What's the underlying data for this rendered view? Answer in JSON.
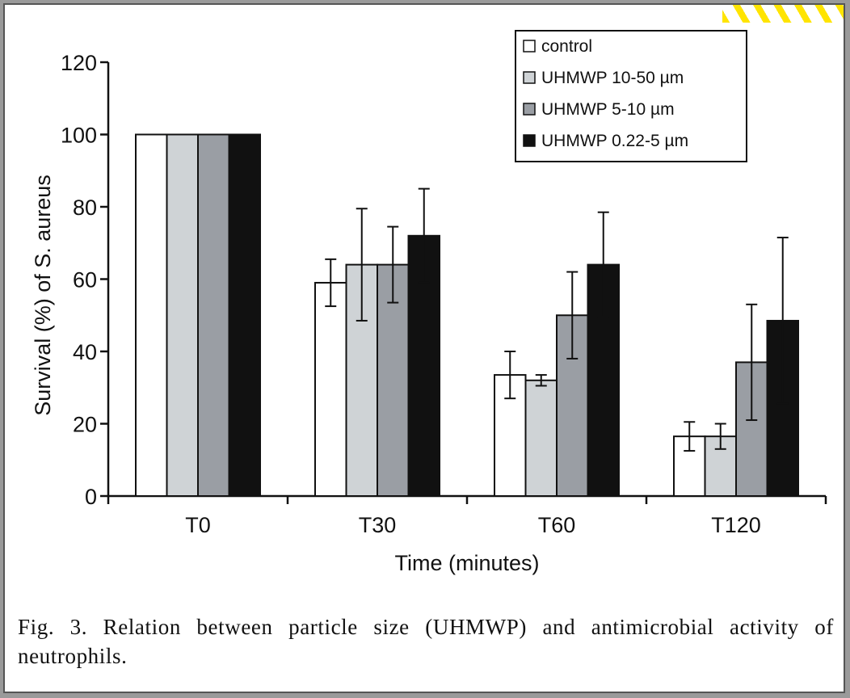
{
  "caption": "Fig. 3. Relation between particle size (UHMWP) and antimicrobial activity of neutrophils.",
  "chart_data": {
    "type": "bar",
    "title": "",
    "xlabel": "Time (minutes)",
    "ylabel": "Survival (%) of S. aureus",
    "ylim": [
      0,
      120
    ],
    "yticks": [
      "0",
      "20",
      "40",
      "60",
      "80",
      "100",
      "120"
    ],
    "categories": [
      "T0",
      "T30",
      "T60",
      "T120"
    ],
    "legend_position": "top-right",
    "grid": false,
    "series": [
      {
        "name": "control",
        "color": "#ffffff",
        "values": [
          100,
          59,
          33.5,
          16.5
        ],
        "errors": [
          0,
          6.5,
          6.5,
          4
        ]
      },
      {
        "name": "UHMWP 10-50 µm",
        "color": "#cfd3d6",
        "values": [
          100,
          64,
          32,
          16.5
        ],
        "errors": [
          0,
          15.5,
          1.5,
          3.5
        ]
      },
      {
        "name": "UHMWP 5-10 µm",
        "color": "#9a9ea4",
        "values": [
          100,
          64,
          50,
          37
        ],
        "errors": [
          0,
          10.5,
          12,
          16
        ]
      },
      {
        "name": "UHMWP  0.22-5 µm",
        "color": "#111111",
        "values": [
          100,
          72,
          64,
          48.5
        ],
        "errors": [
          0,
          13,
          14.5,
          23
        ]
      }
    ]
  }
}
